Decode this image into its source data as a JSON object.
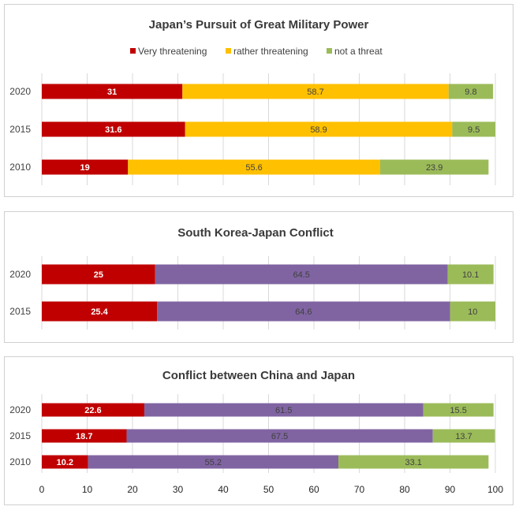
{
  "chart_data": [
    {
      "type": "bar",
      "orientation": "horizontal",
      "stacked": true,
      "title": "Japan’s Pursuit of Great Military Power",
      "legend": {
        "placement": "top",
        "entries": [
          "Very threatening",
          "rather threatening",
          "not a threat"
        ]
      },
      "categories": [
        "2020",
        "2015",
        "2010"
      ],
      "series": [
        {
          "name": "Very threatening",
          "color": "#c00000",
          "values": [
            31,
            31.6,
            19
          ]
        },
        {
          "name": "rather threatening",
          "color": "#ffc000",
          "values": [
            58.7,
            58.9,
            55.6
          ]
        },
        {
          "name": "not a threat",
          "color": "#9bbb59",
          "values": [
            9.8,
            9.5,
            23.9
          ]
        }
      ],
      "xlim": [
        0,
        100
      ],
      "grid": true
    },
    {
      "type": "bar",
      "orientation": "horizontal",
      "stacked": true,
      "title": "South Korea-Japan Conflict",
      "categories": [
        "2020",
        "2015"
      ],
      "series": [
        {
          "color": "#c00000",
          "values": [
            25,
            25.4
          ]
        },
        {
          "color": "#8064a2",
          "values": [
            64.5,
            64.6
          ]
        },
        {
          "color": "#9bbb59",
          "values": [
            10.1,
            10
          ]
        }
      ],
      "xlim": [
        0,
        100
      ],
      "grid": true
    },
    {
      "type": "bar",
      "orientation": "horizontal",
      "stacked": true,
      "title": "Conflict between China and Japan",
      "categories": [
        "2020",
        "2015",
        "2010"
      ],
      "series": [
        {
          "color": "#c00000",
          "values": [
            22.6,
            18.7,
            10.2
          ]
        },
        {
          "color": "#8064a2",
          "values": [
            61.5,
            67.5,
            55.2
          ]
        },
        {
          "color": "#9bbb59",
          "values": [
            15.5,
            13.7,
            33.1
          ]
        }
      ],
      "xlim": [
        0,
        100
      ],
      "xticks": [
        "0",
        "10",
        "20",
        "30",
        "40",
        "50",
        "60",
        "70",
        "80",
        "90",
        "100"
      ],
      "grid": true
    }
  ]
}
